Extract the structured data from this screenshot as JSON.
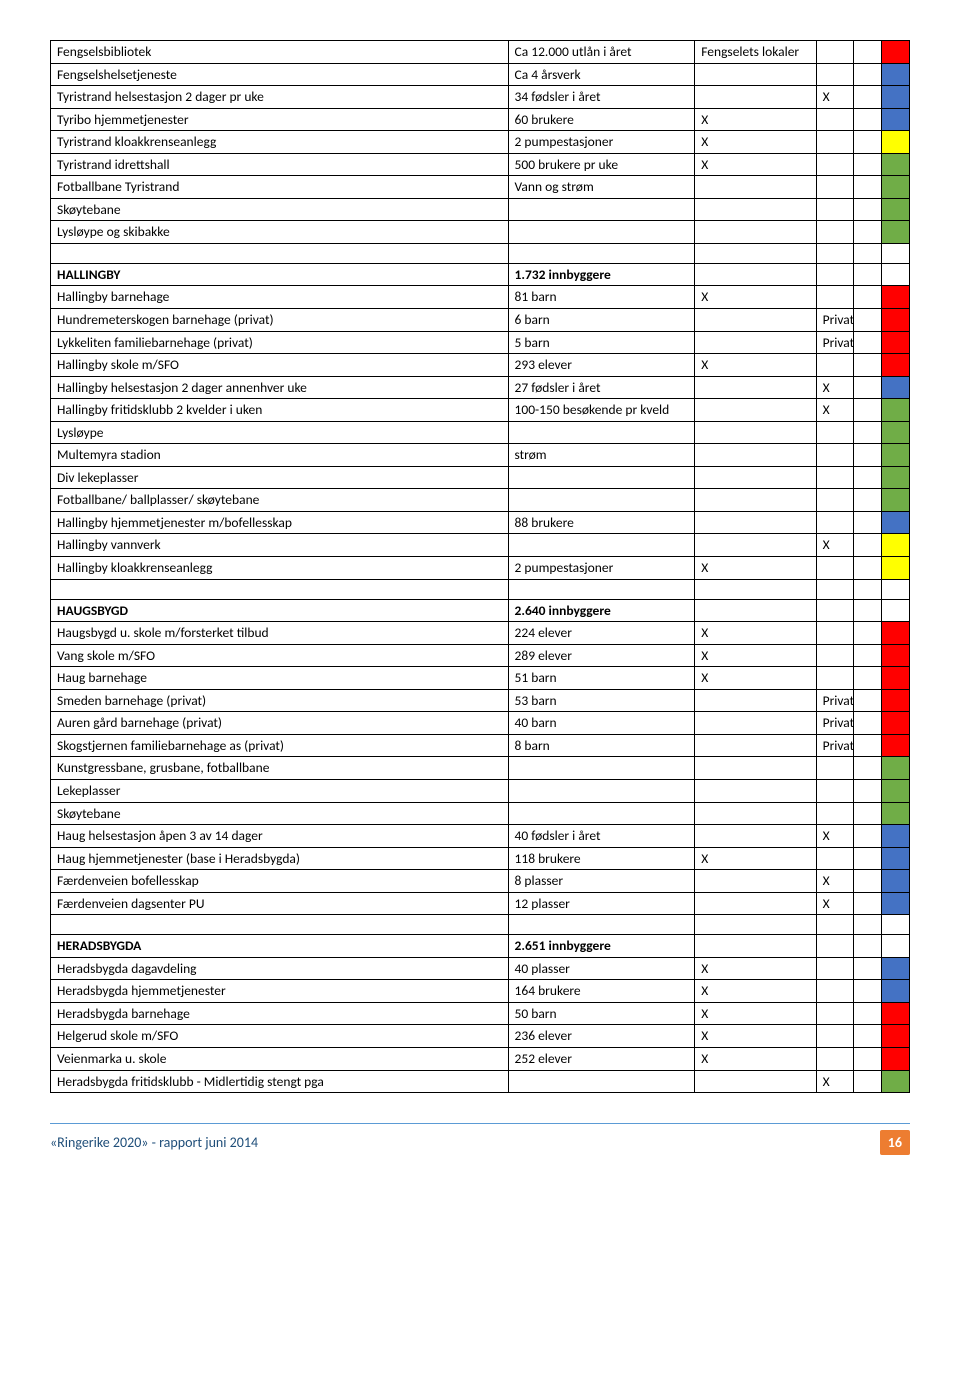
{
  "colors": {
    "red": "#ff0000",
    "blue": "#4472c4",
    "green": "#70ad47",
    "yellow": "#ffff00"
  },
  "rows": [
    {
      "name": "Fengselsbibliotek",
      "val": "Ca 12.000 utlån i året",
      "extra": "Fengselets lokaler",
      "x": "",
      "c1": "",
      "c2": "red"
    },
    {
      "name": "Fengselshelsetjeneste",
      "val": "Ca 4 årsverk",
      "extra": "",
      "x": "",
      "c1": "",
      "c2": "blue"
    },
    {
      "name": "Tyristrand helsestasjon 2 dager pr uke",
      "val": "34 fødsler i året",
      "extra": "",
      "x": "X",
      "c1": "",
      "c2": "blue"
    },
    {
      "name": "Tyribo hjemmetjenester",
      "val": "60 brukere",
      "extra": "X",
      "x": "",
      "c1": "",
      "c2": "blue"
    },
    {
      "name": "Tyristrand kloakkrenseanlegg",
      "val": "2 pumpestasjoner",
      "extra": "X",
      "x": "",
      "c1": "",
      "c2": "yellow"
    },
    {
      "name": "Tyristrand idrettshall",
      "val": "500 brukere pr uke",
      "extra": "X",
      "x": "",
      "c1": "",
      "c2": "green"
    },
    {
      "name": "Fotballbane Tyristrand",
      "val": "Vann og strøm",
      "extra": "",
      "x": "",
      "c1": "",
      "c2": "green"
    },
    {
      "name": "Skøytebane",
      "val": "",
      "extra": "",
      "x": "",
      "c1": "",
      "c2": "green"
    },
    {
      "name": "Lysløype og skibakke",
      "val": "",
      "extra": "",
      "x": "",
      "c1": "",
      "c2": "green"
    },
    {
      "name": "",
      "val": "",
      "extra": "",
      "x": "",
      "c1": "",
      "c2": ""
    },
    {
      "name": "HALLINGBY",
      "bold": true,
      "val": "1.732 innbyggere",
      "valBold": true,
      "extra": "",
      "x": "",
      "c1": "",
      "c2": ""
    },
    {
      "name": "Hallingby barnehage",
      "val": "81 barn",
      "extra": "X",
      "x": "",
      "c1": "",
      "c2": "red"
    },
    {
      "name": "Hundremeterskogen barnehage (privat)",
      "val": "6 barn",
      "extra": "",
      "x": "Privat",
      "c1": "",
      "c2": "red"
    },
    {
      "name": "Lykkeliten familiebarnehage (privat)",
      "val": "5 barn",
      "extra": "",
      "x": "Privat",
      "c1": "",
      "c2": "red"
    },
    {
      "name": "Hallingby skole m/SFO",
      "val": "293 elever",
      "extra": "X",
      "x": "",
      "c1": "",
      "c2": "red"
    },
    {
      "name": "Hallingby helsestasjon 2 dager annenhver uke",
      "val": "27 fødsler i året",
      "extra": "",
      "x": "X",
      "c1": "",
      "c2": "blue"
    },
    {
      "name": "Hallingby fritidsklubb 2 kvelder i uken",
      "val": "100-150 besøkende pr kveld",
      "extra": "",
      "x": "X",
      "c1": "",
      "c2": "green"
    },
    {
      "name": "Lysløype",
      "val": "",
      "extra": "",
      "x": "",
      "c1": "",
      "c2": "green"
    },
    {
      "name": "Multemyra stadion",
      "val": "strøm",
      "extra": "",
      "x": "",
      "c1": "",
      "c2": "green"
    },
    {
      "name": "Div lekeplasser",
      "val": "",
      "extra": "",
      "x": "",
      "c1": "",
      "c2": "green"
    },
    {
      "name": "Fotballbane/ ballplasser/ skøytebane",
      "val": "",
      "extra": "",
      "x": "",
      "c1": "",
      "c2": "green"
    },
    {
      "name": "Hallingby hjemmetjenester m/bofellesskap",
      "val": "88 brukere",
      "extra": "",
      "x": "",
      "c1": "",
      "c2": "blue"
    },
    {
      "name": "Hallingby vannverk",
      "val": "",
      "extra": "",
      "x": "X",
      "c1": "",
      "c2": "yellow"
    },
    {
      "name": "Hallingby kloakkrenseanlegg",
      "val": "2 pumpestasjoner",
      "extra": "X",
      "x": "",
      "c1": "",
      "c2": "yellow"
    },
    {
      "name": "",
      "val": "",
      "extra": "",
      "x": "",
      "c1": "",
      "c2": ""
    },
    {
      "name": "HAUGSBYGD",
      "bold": true,
      "val": "2.640 innbyggere",
      "valBold": true,
      "extra": "",
      "x": "",
      "c1": "",
      "c2": ""
    },
    {
      "name": "Haugsbygd u. skole m/forsterket tilbud",
      "val": "224 elever",
      "extra": "X",
      "x": "",
      "c1": "",
      "c2": "red"
    },
    {
      "name": "Vang skole m/SFO",
      "val": "289 elever",
      "extra": "X",
      "x": "",
      "c1": "",
      "c2": "red"
    },
    {
      "name": "Haug barnehage",
      "val": "51 barn",
      "extra": "X",
      "x": "",
      "c1": "",
      "c2": "red"
    },
    {
      "name": "Smeden barnehage (privat)",
      "val": "53 barn",
      "extra": "",
      "x": "Privat",
      "c1": "",
      "c2": "red"
    },
    {
      "name": "Auren gård barnehage (privat)",
      "val": "40 barn",
      "extra": "",
      "x": "Privat",
      "c1": "",
      "c2": "red"
    },
    {
      "name": "Skogstjernen familiebarnehage as (privat)",
      "val": "8 barn",
      "extra": "",
      "x": "Privat",
      "c1": "",
      "c2": "red"
    },
    {
      "name": "Kunstgressbane, grusbane, fotballbane",
      "val": "",
      "extra": "",
      "x": "",
      "c1": "",
      "c2": "green"
    },
    {
      "name": "Lekeplasser",
      "val": "",
      "extra": "",
      "x": "",
      "c1": "",
      "c2": "green"
    },
    {
      "name": "Skøytebane",
      "val": "",
      "extra": "",
      "x": "",
      "c1": "",
      "c2": "green"
    },
    {
      "name": "Haug helsestasjon åpen 3 av 14 dager",
      "val": "40 fødsler i året",
      "extra": "",
      "x": "X",
      "c1": "",
      "c2": "blue"
    },
    {
      "name": "Haug hjemmetjenester (base i Heradsbygda)",
      "val": "118 brukere",
      "extra": "X",
      "x": "",
      "c1": "",
      "c2": "blue"
    },
    {
      "name": "Færdenveien bofellesskap",
      "val": "8 plasser",
      "extra": "",
      "x": "X",
      "c1": "",
      "c2": "blue"
    },
    {
      "name": "Færdenveien dagsenter PU",
      "val": "12 plasser",
      "extra": "",
      "x": "X",
      "c1": "",
      "c2": "blue"
    },
    {
      "name": "",
      "val": "",
      "extra": "",
      "x": "",
      "c1": "",
      "c2": ""
    },
    {
      "name": "HERADSBYGDA",
      "bold": true,
      "val": "2.651 innbyggere",
      "valBold": true,
      "extra": "",
      "x": "",
      "c1": "",
      "c2": ""
    },
    {
      "name": "Heradsbygda dagavdeling",
      "val": "40 plasser",
      "extra": "X",
      "x": "",
      "c1": "",
      "c2": "blue"
    },
    {
      "name": "Heradsbygda hjemmetjenester",
      "val": "164 brukere",
      "extra": "X",
      "x": "",
      "c1": "",
      "c2": "blue"
    },
    {
      "name": "Heradsbygda barnehage",
      "val": "50 barn",
      "extra": "X",
      "x": "",
      "c1": "",
      "c2": "red"
    },
    {
      "name": "Helgerud skole m/SFO",
      "val": "236 elever",
      "extra": "X",
      "x": "",
      "c1": "",
      "c2": "red"
    },
    {
      "name": "Veienmarka u. skole",
      "val": "252 elever",
      "extra": "X",
      "x": "",
      "c1": "",
      "c2": "red"
    },
    {
      "name": "Heradsbygda fritidsklubb - Midlertidig stengt pga",
      "val": "",
      "extra": "",
      "x": "X",
      "c1": "",
      "c2": "green"
    }
  ],
  "footer": {
    "title": "«Ringerike 2020» - rapport juni 2014",
    "page": "16"
  }
}
